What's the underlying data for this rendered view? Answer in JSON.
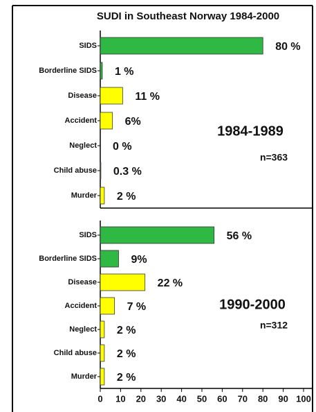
{
  "chart_data": [
    {
      "type": "bar",
      "orientation": "horizontal",
      "title": "SUDI in Southeast Norway 1984-2000",
      "categories": [
        "SIDS",
        "Borderline SIDS",
        "Disease",
        "Accident",
        "Neglect",
        "Child abuse",
        "Murder"
      ],
      "values": [
        80,
        1,
        11,
        6,
        0,
        0.3,
        2
      ],
      "value_labels": [
        "80 %",
        "1 %",
        "11 %",
        "6%",
        "0 %",
        "0.3 %",
        "2 %"
      ],
      "colors": [
        "#2fb844",
        "#2fb844",
        "#ffff00",
        "#ffff00",
        "#ffff00",
        "#ffff00",
        "#ffff00"
      ],
      "annotations": [
        "1984-1989",
        "n=363"
      ],
      "xlim": [
        0,
        100
      ]
    },
    {
      "type": "bar",
      "orientation": "horizontal",
      "categories": [
        "SIDS",
        "Borderline SIDS",
        "Disease",
        "Accident",
        "Neglect",
        "Child abuse",
        "Murder"
      ],
      "values": [
        56,
        9,
        22,
        7,
        2,
        2,
        2
      ],
      "value_labels": [
        "56 %",
        "9%",
        "22 %",
        "7 %",
        "2 %",
        "2 %",
        "2 %"
      ],
      "colors": [
        "#2fb844",
        "#2fb844",
        "#ffff00",
        "#ffff00",
        "#ffff00",
        "#ffff00",
        "#ffff00"
      ],
      "annotations": [
        "1990-2000",
        "n=312"
      ],
      "xlim": [
        0,
        100
      ],
      "xticks": [
        0,
        10,
        20,
        30,
        40,
        50,
        60,
        70,
        80,
        90,
        100
      ]
    }
  ]
}
